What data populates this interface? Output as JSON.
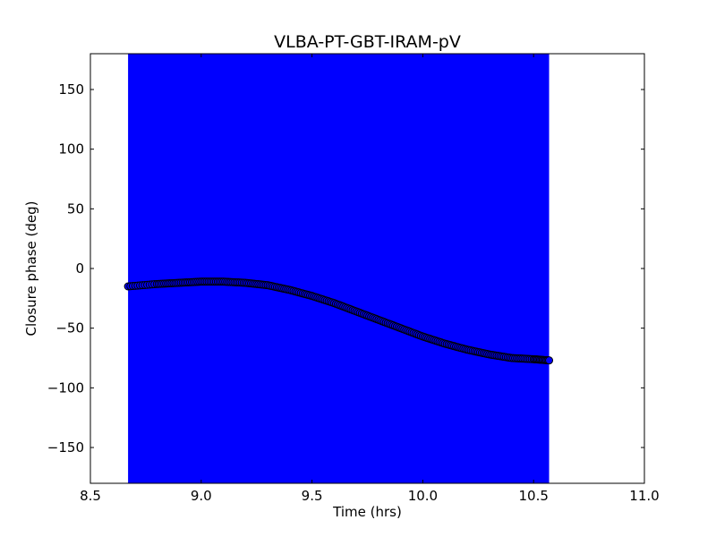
{
  "chart_data": {
    "type": "scatter",
    "title": "VLBA-PT-GBT-IRAM-pV",
    "xlabel": "Time (hrs)",
    "ylabel": "Closure phase (deg)",
    "xlim": [
      8.5,
      11.0
    ],
    "ylim": [
      -180,
      180
    ],
    "x_ticks": [
      8.5,
      9.0,
      9.5,
      10.0,
      10.5,
      11.0
    ],
    "x_tick_labels": [
      "8.5",
      "9.0",
      "9.5",
      "10.0",
      "10.5",
      "11.0"
    ],
    "y_ticks": [
      -150,
      -100,
      -50,
      0,
      50,
      100,
      150
    ],
    "y_tick_labels": [
      "−150",
      "−100",
      "−50",
      "0",
      "50",
      "100",
      "150"
    ],
    "grid": false,
    "error_band": {
      "x_start": 8.67,
      "x_end": 10.57,
      "y_low": -180,
      "y_high": 180,
      "color": "#0000ff"
    },
    "series": [
      {
        "marker_color": "#0000ff",
        "edge_color": "#000000",
        "x": [
          8.67,
          8.8,
          8.9,
          9.0,
          9.1,
          9.2,
          9.3,
          9.4,
          9.5,
          9.6,
          9.7,
          9.8,
          9.9,
          10.0,
          10.1,
          10.2,
          10.3,
          10.4,
          10.5,
          10.57
        ],
        "y": [
          -15,
          -13,
          -12,
          -11,
          -11,
          -12,
          -14,
          -18,
          -23,
          -29,
          -36,
          -43,
          -50,
          -57,
          -63,
          -68,
          -72,
          -75,
          -76,
          -77
        ]
      }
    ]
  }
}
